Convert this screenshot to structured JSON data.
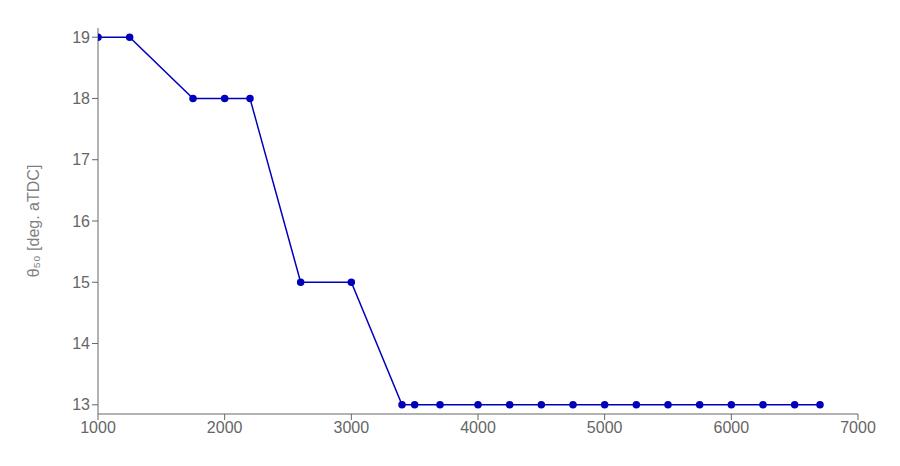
{
  "chart_data": {
    "type": "line",
    "x": [
      1000,
      1250,
      1750,
      2000,
      2200,
      2600,
      3000,
      3400,
      3500,
      3700,
      4000,
      4250,
      4500,
      4750,
      5000,
      5250,
      5500,
      5750,
      6000,
      6250,
      6500,
      6700
    ],
    "values": [
      19,
      19,
      18,
      18,
      18,
      15,
      15,
      13,
      13,
      13,
      13,
      13,
      13,
      13,
      13,
      13,
      13,
      13,
      13,
      13,
      13,
      13
    ],
    "color": "#0000bb",
    "marker": "circle",
    "xlim": [
      1000,
      7000
    ],
    "xticks": [
      1000,
      2000,
      3000,
      4000,
      5000,
      6000,
      7000
    ],
    "ylim": [
      12.85,
      19.15
    ],
    "yticks": [
      13,
      14,
      15,
      16,
      17,
      18,
      19
    ],
    "ylabel": "θ₅₀ [deg. aTDC]",
    "grid": false
  }
}
